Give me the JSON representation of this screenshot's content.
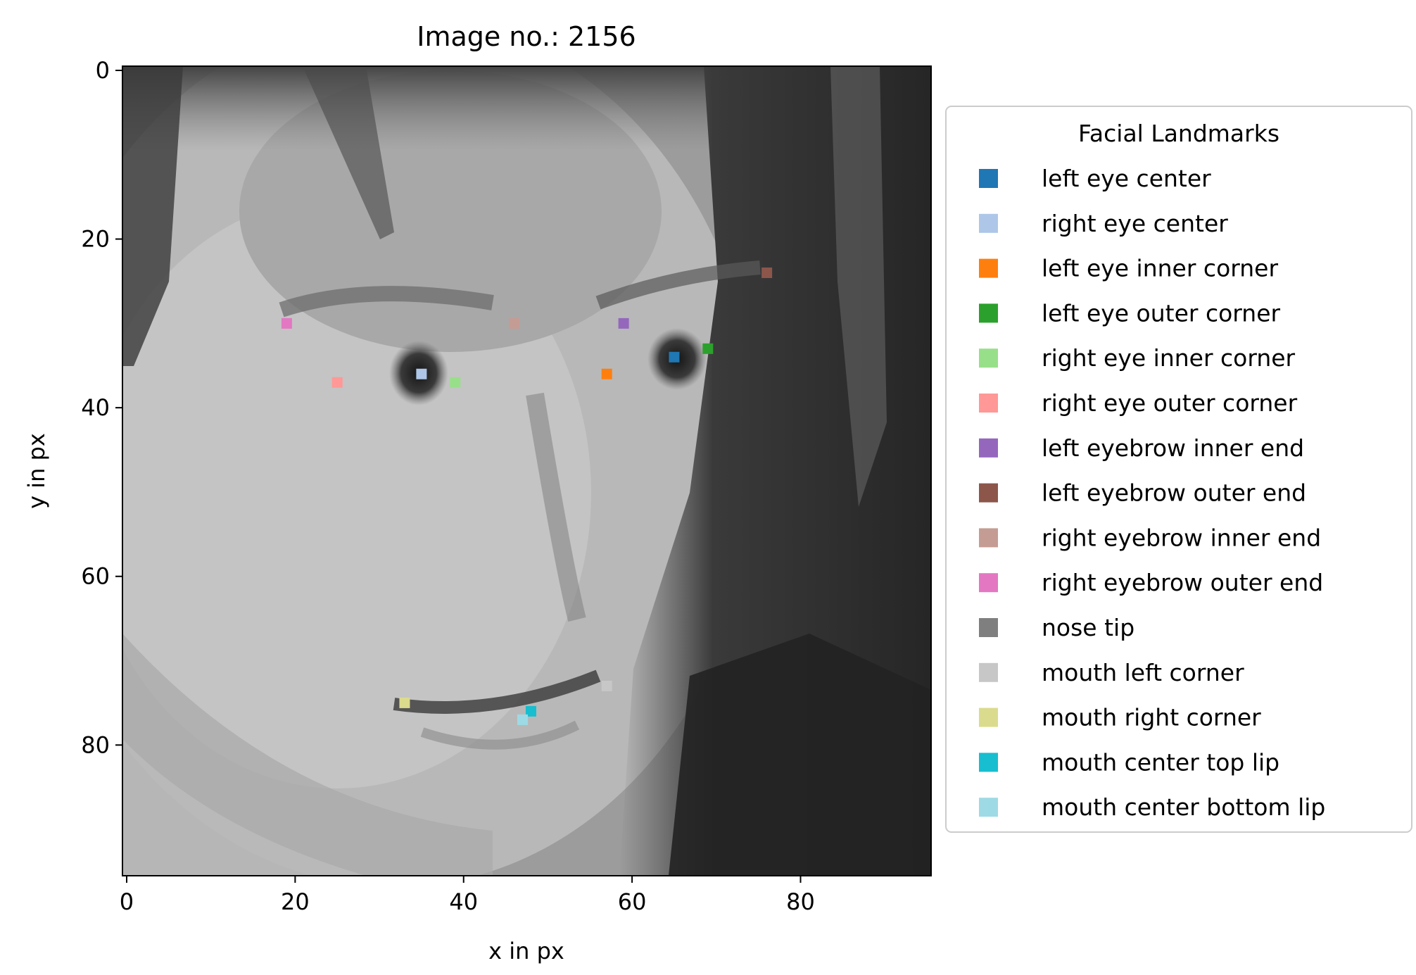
{
  "chart_data": {
    "type": "scatter",
    "title": "Image no.: 2156",
    "xlabel": "x in px",
    "ylabel": "y in px",
    "xlim": [
      -0.5,
      95.5
    ],
    "ylim": [
      95.5,
      -0.5
    ],
    "x_ticks": [
      0,
      20,
      40,
      60,
      80
    ],
    "y_ticks": [
      0,
      20,
      40,
      60,
      80
    ],
    "background": "grayscale face photograph",
    "grid": false,
    "legend": {
      "title": "Facial Landmarks",
      "placement": "outside-right"
    },
    "series": [
      {
        "name": "left eye center",
        "color": "#1f77b4",
        "x": 65,
        "y": 34
      },
      {
        "name": "right eye center",
        "color": "#aec7e8",
        "x": 35,
        "y": 36
      },
      {
        "name": "left eye inner corner",
        "color": "#ff7f0e",
        "x": 57,
        "y": 36
      },
      {
        "name": "left eye outer corner",
        "color": "#2ca02c",
        "x": 69,
        "y": 33
      },
      {
        "name": "right eye inner corner",
        "color": "#98df8a",
        "x": 39,
        "y": 37
      },
      {
        "name": "right eye outer corner",
        "color": "#ff9896",
        "x": 25,
        "y": 37
      },
      {
        "name": "left eyebrow inner end",
        "color": "#9467bd",
        "x": 59,
        "y": 30
      },
      {
        "name": "left eyebrow outer end",
        "color": "#8c564b",
        "x": 76,
        "y": 24
      },
      {
        "name": "right eyebrow inner end",
        "color": "#c49c94",
        "x": 46,
        "y": 30
      },
      {
        "name": "right eyebrow outer end",
        "color": "#e377c2",
        "x": 19,
        "y": 30
      },
      {
        "name": "nose tip",
        "color": "#7f7f7f",
        "x": null,
        "y": null
      },
      {
        "name": "mouth left corner",
        "color": "#c7c7c7",
        "x": 57,
        "y": 73
      },
      {
        "name": "mouth right corner",
        "color": "#dbdb8d",
        "x": 33,
        "y": 75
      },
      {
        "name": "mouth center top lip",
        "color": "#17becf",
        "x": 48,
        "y": 76
      },
      {
        "name": "mouth center bottom lip",
        "color": "#9edae5",
        "x": 47,
        "y": 77
      }
    ]
  }
}
